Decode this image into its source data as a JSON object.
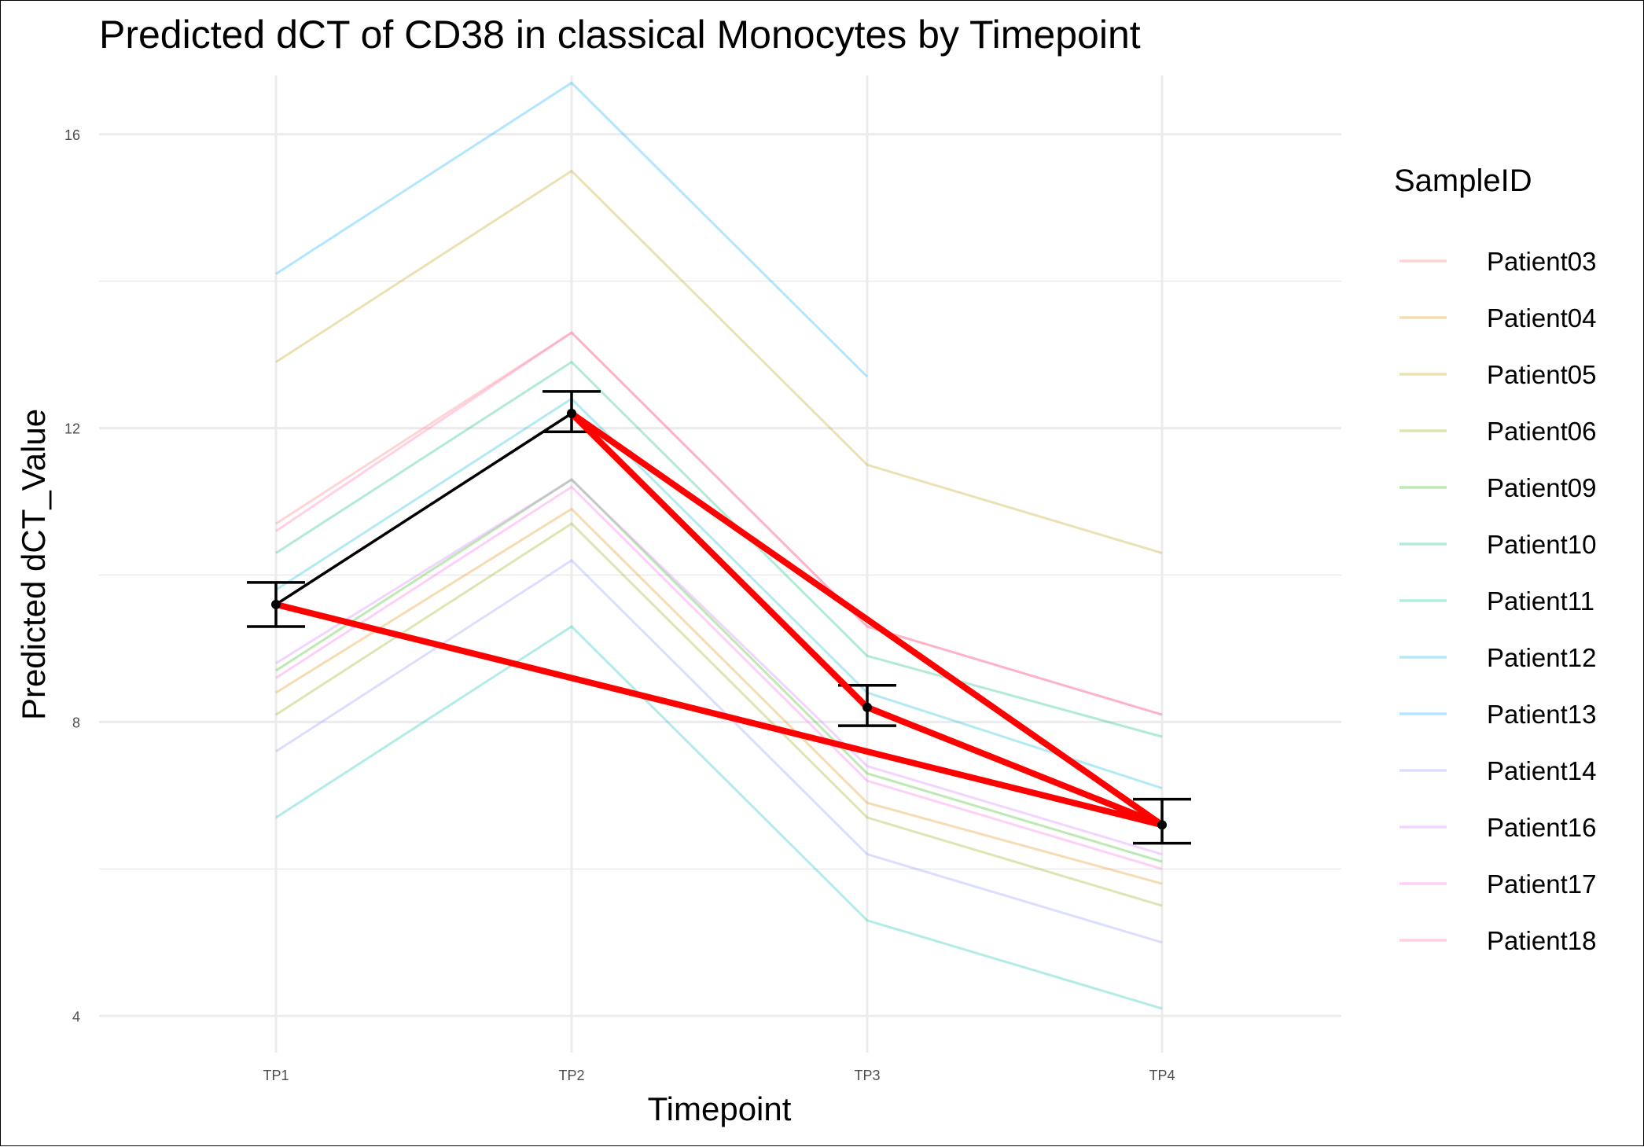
{
  "chart_data": {
    "type": "line",
    "title": "Predicted dCT of  CD38 in  classical  Monocytes by Timepoint",
    "xlabel": "Timepoint",
    "ylabel": "Predicted dCT_Value",
    "categories": [
      "TP1",
      "TP2",
      "TP3",
      "TP4"
    ],
    "ylim": [
      3.5,
      16.8
    ],
    "yticks": [
      4,
      8,
      12,
      16
    ],
    "grid": true,
    "legend": {
      "title": "SampleID",
      "position": "right"
    },
    "series": [
      {
        "name": "Patient03",
        "color": "#F8766D",
        "values": [
          10.7,
          13.3,
          9.3,
          8.1
        ]
      },
      {
        "name": "Patient04",
        "color": "#E18A00",
        "values": [
          8.4,
          10.9,
          6.9,
          5.8
        ]
      },
      {
        "name": "Patient05",
        "color": "#BE9C00",
        "values": [
          12.9,
          15.5,
          11.5,
          10.3
        ]
      },
      {
        "name": "Patient06",
        "color": "#8CAB00",
        "values": [
          8.1,
          10.7,
          6.7,
          5.5
        ]
      },
      {
        "name": "Patient09",
        "color": "#24B700",
        "values": [
          8.7,
          11.3,
          7.3,
          6.1
        ]
      },
      {
        "name": "Patient10",
        "color": "#00BE70",
        "values": [
          10.3,
          12.9,
          8.9,
          7.8
        ]
      },
      {
        "name": "Patient11",
        "color": "#00C1AB",
        "values": [
          6.7,
          9.3,
          5.3,
          4.1
        ]
      },
      {
        "name": "Patient12",
        "color": "#00BBDA",
        "values": [
          9.8,
          12.4,
          8.4,
          7.1
        ]
      },
      {
        "name": "Patient13",
        "color": "#00ACFC",
        "values": [
          14.1,
          16.7,
          12.7,
          null
        ]
      },
      {
        "name": "Patient14",
        "color": "#8B93FF",
        "values": [
          7.6,
          10.2,
          6.2,
          5.0
        ]
      },
      {
        "name": "Patient16",
        "color": "#D575FE",
        "values": [
          8.8,
          11.3,
          7.4,
          6.2
        ]
      },
      {
        "name": "Patient17",
        "color": "#F962DD",
        "values": [
          8.6,
          11.2,
          7.2,
          6.0
        ]
      },
      {
        "name": "Patient18",
        "color": "#FF65AC",
        "values": [
          10.6,
          13.3,
          9.3,
          8.1
        ]
      }
    ],
    "mean": {
      "values": [
        9.6,
        12.2,
        8.2,
        6.6
      ],
      "error_low": [
        9.3,
        11.95,
        7.95,
        6.35
      ],
      "error_high": [
        9.9,
        12.5,
        8.5,
        6.95
      ],
      "color": "#000000"
    },
    "red_path": {
      "color": "#FF0000",
      "points": [
        {
          "x": "TP1",
          "y": 9.6
        },
        {
          "x": "TP4",
          "y": 6.6
        },
        {
          "x": "TP2",
          "y": 12.2
        },
        {
          "x": "TP3",
          "y": 8.2
        },
        {
          "x": "TP4",
          "y": 6.6
        }
      ]
    }
  }
}
